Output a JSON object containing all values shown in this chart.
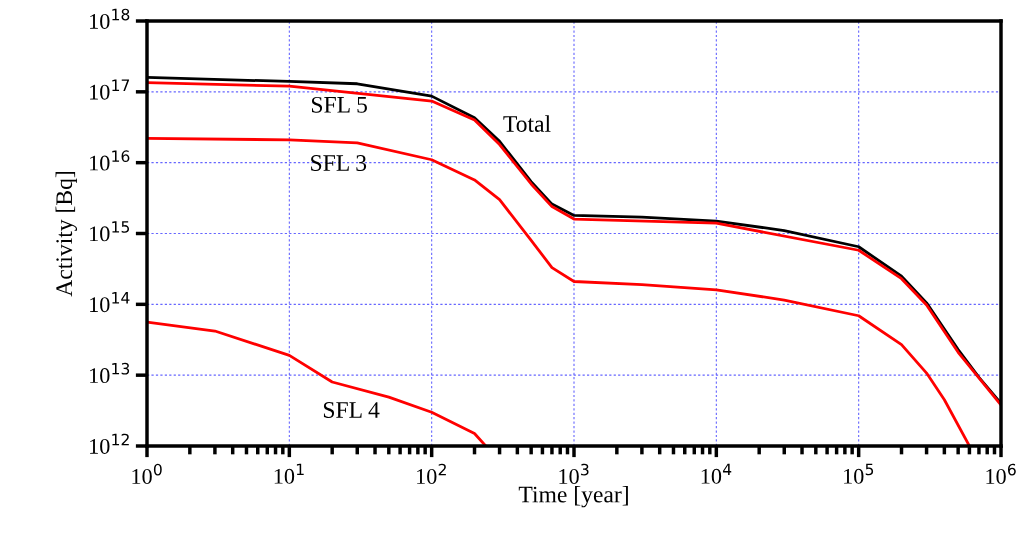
{
  "chart_data": {
    "type": "line",
    "xlabel": "Time [year]",
    "ylabel": "Activity [Bq]",
    "log": "xy",
    "grid": true,
    "legend": false,
    "line_style": "solid",
    "marker": "none",
    "xlim": [
      1,
      1000000
    ],
    "ylim": [
      1000000000000.0,
      1e+18
    ],
    "xticks": [
      {
        "value": 1,
        "label": "10$^{0}$"
      },
      {
        "value": 10,
        "label": "10$^{1}$"
      },
      {
        "value": 100,
        "label": "10$^{2}$"
      },
      {
        "value": 1000,
        "label": "10$^{3}$"
      },
      {
        "value": 10000,
        "label": "10$^{4}$"
      },
      {
        "value": 100000,
        "label": "10$^{5}$"
      },
      {
        "value": 1000000,
        "label": "10$^{6}$"
      }
    ],
    "yticks": [
      {
        "value": 1000000000000.0,
        "label": "10$^{12}$"
      },
      {
        "value": 10000000000000.0,
        "label": "10$^{13}$"
      },
      {
        "value": 100000000000000.0,
        "label": "10$^{14}$"
      },
      {
        "value": 1000000000000000.0,
        "label": "10$^{15}$"
      },
      {
        "value": 1e+16,
        "label": "10$^{16}$"
      },
      {
        "value": 1e+17,
        "label": "10$^{17}$"
      },
      {
        "value": 1e+18,
        "label": "10$^{18}$"
      }
    ],
    "series": [
      {
        "name": "Total",
        "color": "#000000",
        "x": [
          1,
          10,
          30,
          100,
          200,
          300,
          500,
          700,
          1000,
          3000,
          10000,
          30000,
          100000,
          200000,
          300000,
          500000,
          700000,
          1000000
        ],
        "values": [
          1.6e+17,
          1.4e+17,
          1.3e+17,
          8.7e+16,
          4.3e+16,
          2e+16,
          5400000000000000.0,
          2600000000000000.0,
          1800000000000000.0,
          1700000000000000.0,
          1500000000000000.0,
          1100000000000000.0,
          650000000000000.0,
          250000000000000.0,
          105000000000000.0,
          23000000000000.0,
          9300000000000.0,
          4000000000000.0
        ]
      },
      {
        "name": "SFL 5",
        "color": "#ff0000",
        "x": [
          1,
          10,
          100,
          200,
          300,
          500,
          700,
          1000,
          10000,
          100000,
          200000,
          300000,
          500000,
          1000000
        ],
        "values": [
          1.35e+17,
          1.2e+17,
          7.4e+16,
          4e+16,
          1.8e+16,
          5000000000000000.0,
          2400000000000000.0,
          1600000000000000.0,
          1400000000000000.0,
          580000000000000.0,
          230000000000000.0,
          98000000000000.0,
          21000000000000.0,
          3800000000000.0
        ]
      },
      {
        "name": "SFL 3",
        "color": "#ff0000",
        "x": [
          1,
          10,
          30,
          100,
          200,
          300,
          500,
          700,
          1000,
          3000,
          10000,
          30000,
          100000,
          200000,
          300000,
          400000,
          600000
        ],
        "values": [
          2.2e+16,
          2.1e+16,
          1.9e+16,
          1.1e+16,
          5700000000000000.0,
          3000000000000000.0,
          800000000000000.0,
          330000000000000.0,
          210000000000000.0,
          190000000000000.0,
          160000000000000.0,
          115000000000000.0,
          69000000000000.0,
          27000000000000.0,
          10700000000000.0,
          4500000000000.0,
          1000000000000.0
        ]
      },
      {
        "name": "SFL 4",
        "color": "#ff0000",
        "x": [
          1,
          3,
          10,
          20,
          50,
          100,
          200,
          240
        ],
        "values": [
          56000000000000.0,
          42000000000000.0,
          19000000000000.0,
          8000000000000.0,
          4900000000000.0,
          3000000000000.0,
          1500000000000.0,
          1000000000000.0
        ]
      }
    ]
  }
}
